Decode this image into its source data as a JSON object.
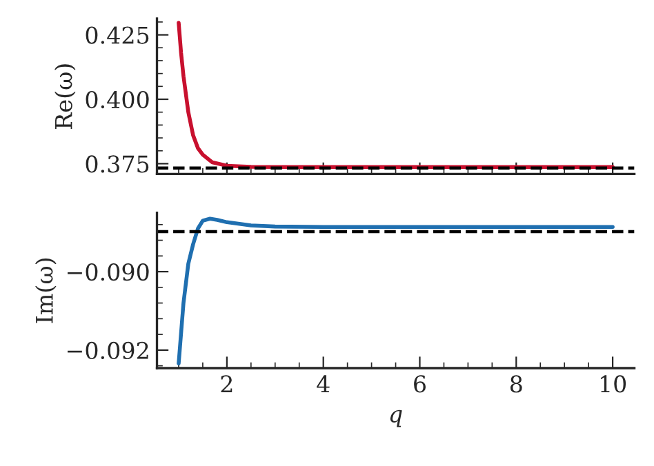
{
  "chart_data": [
    {
      "type": "line",
      "ylabel": "Re(ω)",
      "xlim": [
        0.55,
        10.45
      ],
      "xticks": [
        2,
        4,
        6,
        8,
        10
      ],
      "ylim": [
        0.371,
        0.4313
      ],
      "yticks": [
        0.375,
        {
          "value": 0.4,
          "label": "0.400"
        },
        0.425
      ],
      "tick_labels": "y",
      "grid": false,
      "line_style": "solid",
      "series": [
        {
          "color": "#c8102e",
          "x": [
            1.0,
            1.05,
            1.1,
            1.2,
            1.3,
            1.4,
            1.5,
            1.7,
            2.0,
            2.5,
            3.0,
            4.0,
            6.0,
            8.0,
            10.0
          ],
          "values": [
            0.4297,
            0.418,
            0.409,
            0.395,
            0.386,
            0.381,
            0.3785,
            0.3755,
            0.3742,
            0.3738,
            0.3737,
            0.3737,
            0.3737,
            0.3737,
            0.3737
          ]
        }
      ],
      "ref_lines": [
        {
          "axis": "y",
          "value": 0.3733,
          "color": "#000000",
          "line_style": "dashed"
        }
      ]
    },
    {
      "type": "line",
      "ylabel": "Im(ω)",
      "xlabel": "q",
      "xlim": [
        0.55,
        10.45
      ],
      "xticks": [
        2,
        4,
        6,
        8,
        10
      ],
      "ylim": [
        -0.09246,
        -0.0885
      ],
      "yticks": [
        {
          "value": -0.092,
          "label": "−0.092"
        },
        {
          "value": -0.09,
          "label": "−0.090"
        }
      ],
      "grid": false,
      "line_style": "solid",
      "series": [
        {
          "color": "#1f6fb0",
          "x": [
            1.0,
            1.1,
            1.2,
            1.3,
            1.4,
            1.5,
            1.65,
            1.8,
            2.0,
            2.5,
            3.0,
            4.0,
            6.0,
            8.0,
            10.0
          ],
          "values": [
            -0.09234,
            -0.0908,
            -0.0898,
            -0.0893,
            -0.0889,
            -0.0887,
            -0.08865,
            -0.08868,
            -0.08874,
            -0.08882,
            -0.08885,
            -0.08886,
            -0.08886,
            -0.08886,
            -0.08886
          ]
        }
      ],
      "ref_lines": [
        {
          "axis": "y",
          "value": -0.08898,
          "color": "#000000",
          "line_style": "dashed"
        }
      ]
    }
  ]
}
